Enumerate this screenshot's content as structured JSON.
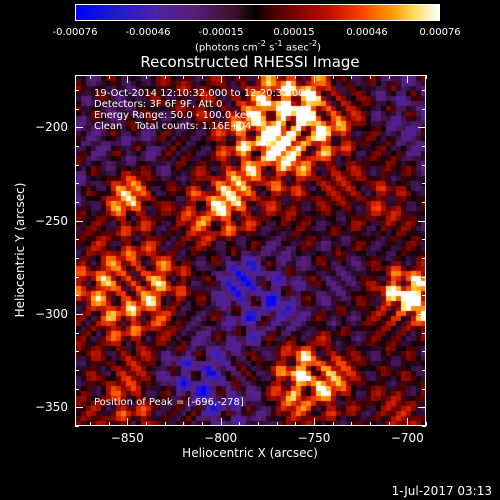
{
  "colorbar": {
    "ticks": [
      "-0.00076",
      "-0.00046",
      "-0.00015",
      "0.00015",
      "0.00046",
      "0.00076"
    ],
    "units": "(photons cm",
    "units_exp1": "-2",
    "units_mid": " s",
    "units_exp2": "-1",
    "units_mid2": " asec",
    "units_exp3": "-2",
    "units_end": ")"
  },
  "chart_data": {
    "type": "heatmap",
    "title": "Reconstructed RHESSI Image",
    "xlabel": "Heliocentric X (arcsec)",
    "ylabel": "Heliocentric Y (arcsec)",
    "xlim": [
      -878,
      -690
    ],
    "ylim": [
      -360,
      -172
    ],
    "x_ticks": [
      -850,
      -800,
      -750,
      -700
    ],
    "y_ticks": [
      -350,
      -300,
      -250,
      -200
    ],
    "color_range": [
      -0.00076,
      0.00076
    ],
    "peak_position": [
      -696,
      -278
    ],
    "annotations": {
      "line1": "19-Oct-2014 12:10:32.000 to 12:20:32.000",
      "line2": "Detectors: 3F 6F 9F, Att 0",
      "line3": "Energy Range: 50.0 - 100.0 keV",
      "line4_a": "Clean",
      "line4_b": "Total counts: 1.16E+04",
      "peak": "Position of Peak = [-696,-278]"
    }
  },
  "footer": {
    "date": "1-Jul-2017 03:13"
  }
}
